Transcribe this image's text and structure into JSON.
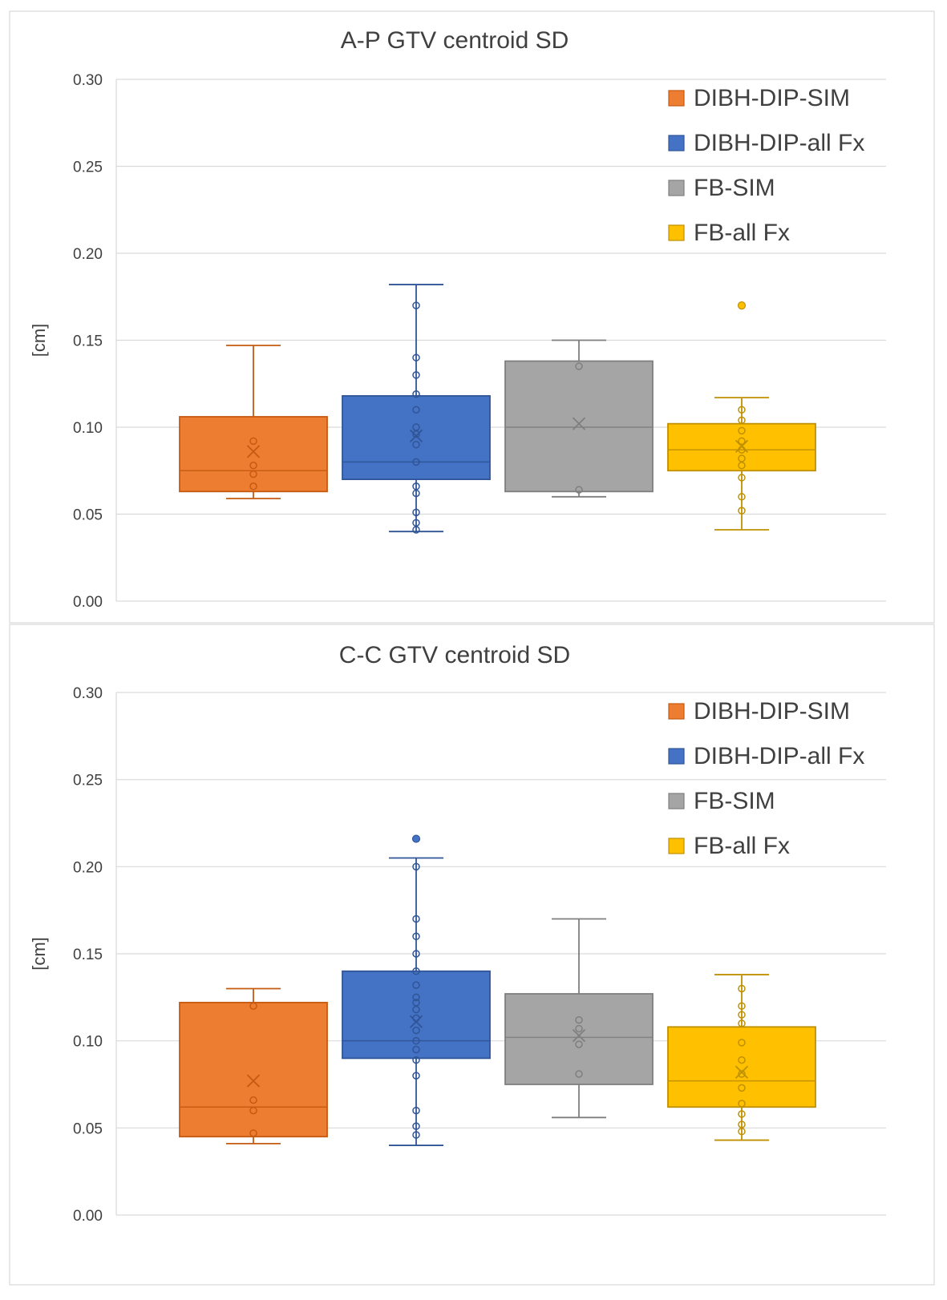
{
  "chart_data": [
    {
      "type": "box",
      "title": "A-P GTV centroid SD",
      "ylabel": "[cm]",
      "ylim": [
        0,
        0.3
      ],
      "yticks": [
        "0.00",
        "0.05",
        "0.10",
        "0.15",
        "0.20",
        "0.25",
        "0.30"
      ],
      "legend_position": "top-right",
      "series": [
        {
          "name": "DIBH-DIP-SIM",
          "color": "#ED7D31",
          "stroke": "#C55A11",
          "min": 0.059,
          "q1": 0.063,
          "median": 0.075,
          "q3": 0.106,
          "max": 0.147,
          "mean": 0.086,
          "points": [
            0.066,
            0.073,
            0.078,
            0.092
          ],
          "outliers": []
        },
        {
          "name": "DIBH-DIP-all Fx",
          "color": "#4472C4",
          "stroke": "#2F5597",
          "min": 0.04,
          "q1": 0.07,
          "median": 0.08,
          "q3": 0.118,
          "max": 0.182,
          "mean": 0.095,
          "points": [
            0.041,
            0.045,
            0.051,
            0.062,
            0.066,
            0.08,
            0.09,
            0.096,
            0.1,
            0.11,
            0.119,
            0.13,
            0.14,
            0.17
          ],
          "outliers": []
        },
        {
          "name": "FB-SIM",
          "color": "#A5A5A5",
          "stroke": "#7F7F7F",
          "min": 0.06,
          "q1": 0.063,
          "median": 0.1,
          "q3": 0.138,
          "max": 0.15,
          "mean": 0.102,
          "points": [
            0.064,
            0.135
          ],
          "outliers": []
        },
        {
          "name": "FB-all Fx",
          "color": "#FFC000",
          "stroke": "#BF9000",
          "min": 0.041,
          "q1": 0.075,
          "median": 0.087,
          "q3": 0.102,
          "max": 0.117,
          "mean": 0.089,
          "points": [
            0.052,
            0.06,
            0.071,
            0.078,
            0.082,
            0.087,
            0.092,
            0.098,
            0.104,
            0.11
          ],
          "outliers": [
            0.17
          ]
        }
      ]
    },
    {
      "type": "box",
      "title": "C-C GTV centroid SD",
      "ylabel": "[cm]",
      "ylim": [
        0,
        0.3
      ],
      "yticks": [
        "0.00",
        "0.05",
        "0.10",
        "0.15",
        "0.20",
        "0.25",
        "0.30"
      ],
      "legend_position": "top-right",
      "series": [
        {
          "name": "DIBH-DIP-SIM",
          "color": "#ED7D31",
          "stroke": "#C55A11",
          "min": 0.041,
          "q1": 0.045,
          "median": 0.062,
          "q3": 0.122,
          "max": 0.13,
          "mean": 0.077,
          "points": [
            0.047,
            0.06,
            0.066,
            0.12
          ],
          "outliers": []
        },
        {
          "name": "DIBH-DIP-all Fx",
          "color": "#4472C4",
          "stroke": "#2F5597",
          "min": 0.04,
          "q1": 0.09,
          "median": 0.1,
          "q3": 0.14,
          "max": 0.205,
          "mean": 0.111,
          "points": [
            0.046,
            0.051,
            0.06,
            0.08,
            0.089,
            0.095,
            0.1,
            0.106,
            0.113,
            0.118,
            0.122,
            0.125,
            0.132,
            0.14,
            0.15,
            0.16,
            0.17,
            0.2
          ],
          "outliers": [
            0.216
          ]
        },
        {
          "name": "FB-SIM",
          "color": "#A5A5A5",
          "stroke": "#7F7F7F",
          "min": 0.056,
          "q1": 0.075,
          "median": 0.102,
          "q3": 0.127,
          "max": 0.17,
          "mean": 0.103,
          "points": [
            0.081,
            0.098,
            0.107,
            0.112
          ],
          "outliers": []
        },
        {
          "name": "FB-all Fx",
          "color": "#FFC000",
          "stroke": "#BF9000",
          "min": 0.043,
          "q1": 0.062,
          "median": 0.077,
          "q3": 0.108,
          "max": 0.138,
          "mean": 0.082,
          "points": [
            0.048,
            0.052,
            0.058,
            0.064,
            0.073,
            0.081,
            0.089,
            0.099,
            0.11,
            0.115,
            0.12,
            0.13
          ],
          "outliers": []
        }
      ]
    }
  ]
}
